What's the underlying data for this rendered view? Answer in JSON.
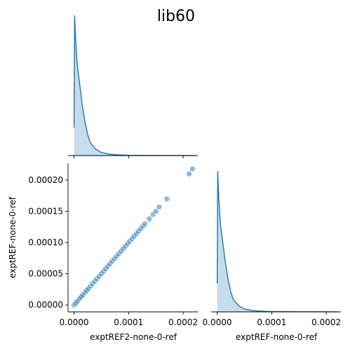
{
  "title": "lib60",
  "colors": {
    "series": "#1f77b4"
  },
  "chart_data": [
    {
      "type": "area",
      "panel": "diagonal-1",
      "variable": "exptREF2-none-0-ref",
      "kind": "kde",
      "x": [
        0.0,
        1e-06,
        3e-06,
        6e-06,
        1e-05,
        1.5e-05,
        2e-05,
        2.5e-05,
        3e-05,
        4e-05,
        5e-05,
        6.5e-05,
        8e-05,
        0.0001,
        0.00015,
        0.00022
      ],
      "density_rel": [
        0.2,
        1.0,
        0.82,
        0.64,
        0.52,
        0.36,
        0.24,
        0.15,
        0.09,
        0.045,
        0.022,
        0.01,
        0.005,
        0.002,
        0.0008,
        0.0003
      ]
    },
    {
      "type": "scatter",
      "panel": "lower-left",
      "xlabel": "exptREF2-none-0-ref",
      "ylabel": "exptREF-none-0-ref",
      "xticks": [
        "0.0000",
        "0.0001",
        "0.0002"
      ],
      "yticks": [
        "0.00000",
        "0.00005",
        "0.00010",
        "0.00015",
        "0.00020"
      ],
      "xlim": [
        -1.1e-05,
        0.000227
      ],
      "ylim": [
        -1.1e-05,
        0.000227
      ],
      "x": [
        0.0,
        3e-06,
        6e-06,
        1e-05,
        1.3e-05,
        1.6e-05,
        2e-05,
        2.3e-05,
        2.6e-05,
        3e-05,
        3.4e-05,
        3.8e-05,
        4.2e-05,
        4.6e-05,
        5e-05,
        5.4e-05,
        5.8e-05,
        6.2e-05,
        6.6e-05,
        7e-05,
        7.4e-05,
        7.8e-05,
        8.2e-05,
        8.6e-05,
        9e-05,
        9.4e-05,
        9.8e-05,
        0.000102,
        0.000106,
        0.00011,
        0.000114,
        0.000118,
        0.000122,
        0.000126,
        0.00013,
        0.000138,
        0.000145,
        0.00015,
        0.000156,
        0.00017,
        0.000211,
        0.000217
      ],
      "y": [
        0.0,
        3e-06,
        6e-06,
        1e-05,
        1.3e-05,
        1.6e-05,
        2e-05,
        2.3e-05,
        2.6e-05,
        3e-05,
        3.4e-05,
        3.8e-05,
        4.2e-05,
        4.6e-05,
        5e-05,
        5.4e-05,
        5.8e-05,
        6.2e-05,
        6.6e-05,
        7e-05,
        7.4e-05,
        7.8e-05,
        8.2e-05,
        8.6e-05,
        9e-05,
        9.4e-05,
        9.8e-05,
        0.000102,
        0.000106,
        0.00011,
        0.000114,
        0.000118,
        0.000122,
        0.000126,
        0.00013,
        0.000138,
        0.000145,
        0.00015,
        0.000157,
        0.00017,
        0.00021,
        0.000218
      ]
    },
    {
      "type": "area",
      "panel": "diagonal-2",
      "variable": "exptREF-none-0-ref",
      "kind": "kde",
      "xlabel": "exptREF-none-0-ref",
      "xticks": [
        "0.0000",
        "0.0001",
        "0.0002"
      ],
      "x": [
        0.0,
        1e-06,
        3e-06,
        6e-06,
        1e-05,
        1.5e-05,
        2e-05,
        2.5e-05,
        3e-05,
        4e-05,
        5e-05,
        6.5e-05,
        8e-05,
        0.0001,
        0.00015,
        0.00022
      ],
      "density_rel": [
        0.2,
        1.0,
        0.8,
        0.62,
        0.5,
        0.35,
        0.23,
        0.14,
        0.085,
        0.042,
        0.02,
        0.009,
        0.005,
        0.002,
        0.0008,
        0.0003
      ]
    }
  ]
}
